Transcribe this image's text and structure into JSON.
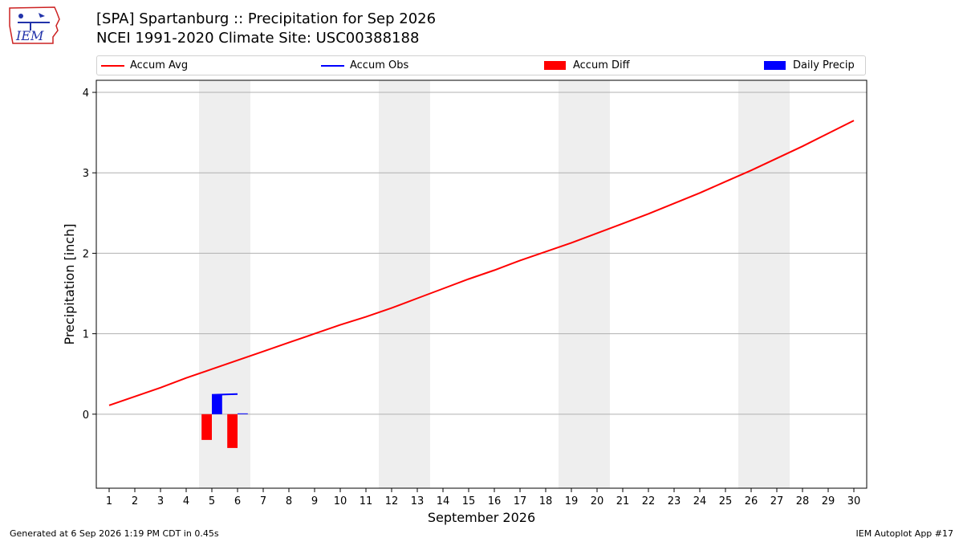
{
  "logo": {
    "text": "IEM",
    "icon": "iem-iowa-logo-icon"
  },
  "title_line1": "[SPA] Spartanburg :: Precipitation for Sep 2026",
  "title_line2": "NCEI 1991-2020 Climate Site: USC00388188",
  "footer_left": "Generated at 6 Sep 2026 1:19 PM CDT in 0.45s",
  "footer_right": "IEM Autoplot App #17",
  "legend": [
    {
      "label": "Accum Avg",
      "type": "line",
      "color": "#ff0000"
    },
    {
      "label": "Accum Obs",
      "type": "line",
      "color": "#0000ff"
    },
    {
      "label": "Accum Diff",
      "type": "bar",
      "color": "#ff0000"
    },
    {
      "label": "Daily Precip",
      "type": "bar",
      "color": "#0000ff"
    }
  ],
  "chart_data": {
    "type": "line",
    "xlabel": "September 2026",
    "ylabel": "Precipitation [inch]",
    "x": [
      1,
      2,
      3,
      4,
      5,
      6,
      7,
      8,
      9,
      10,
      11,
      12,
      13,
      14,
      15,
      16,
      17,
      18,
      19,
      20,
      21,
      22,
      23,
      24,
      25,
      26,
      27,
      28,
      29,
      30
    ],
    "xlim": [
      0.5,
      30.5
    ],
    "ylim": [
      -0.92,
      4.15
    ],
    "yticks": [
      0,
      1,
      2,
      3,
      4
    ],
    "grid": "horizontal",
    "weekend_shading": [
      [
        4.5,
        6.5
      ],
      [
        11.5,
        13.5
      ],
      [
        18.5,
        20.5
      ],
      [
        25.5,
        27.5
      ]
    ],
    "weekend_color": "#eeeeee",
    "series": [
      {
        "name": "Accum Avg",
        "type": "line",
        "color": "#ff0000",
        "x": [
          1,
          2,
          3,
          4,
          5,
          6,
          7,
          8,
          9,
          10,
          11,
          12,
          13,
          14,
          15,
          16,
          17,
          18,
          19,
          20,
          21,
          22,
          23,
          24,
          25,
          26,
          27,
          28,
          29,
          30
        ],
        "values": [
          0.11,
          0.22,
          0.33,
          0.45,
          0.56,
          0.67,
          0.78,
          0.89,
          1.0,
          1.11,
          1.21,
          1.32,
          1.44,
          1.56,
          1.68,
          1.79,
          1.91,
          2.02,
          2.13,
          2.25,
          2.37,
          2.49,
          2.62,
          2.75,
          2.89,
          3.03,
          3.18,
          3.33,
          3.49,
          3.65
        ]
      },
      {
        "name": "Accum Obs",
        "type": "line",
        "color": "#0000ff",
        "x": [
          5,
          6
        ],
        "values": [
          0.24,
          0.25
        ]
      },
      {
        "name": "Accum Diff",
        "type": "bar",
        "color": "#ff0000",
        "x": [
          4.8,
          5.8
        ],
        "values": [
          -0.32,
          -0.42
        ]
      },
      {
        "name": "Daily Precip",
        "type": "bar",
        "color": "#0000ff",
        "x": [
          5.2,
          6.2
        ],
        "values": [
          0.24,
          0.01
        ]
      }
    ]
  }
}
